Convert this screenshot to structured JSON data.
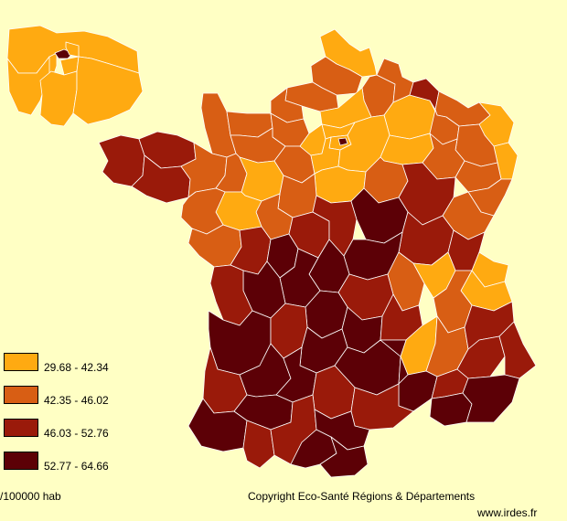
{
  "legend": {
    "items": [
      {
        "label": "29.68 - 42.34",
        "color": "#FFAA11"
      },
      {
        "label": "42.35 - 46.02",
        "color": "#D85E14"
      },
      {
        "label": "46.03 - 52.76",
        "color": "#9A1A0A"
      },
      {
        "label": "52.77 - 64.66",
        "color": "#5C0006"
      }
    ]
  },
  "unit_label": "/100000 hab",
  "copyright": "Copyright Eco-Santé Régions & Départements",
  "source": "www.irdes.fr"
}
